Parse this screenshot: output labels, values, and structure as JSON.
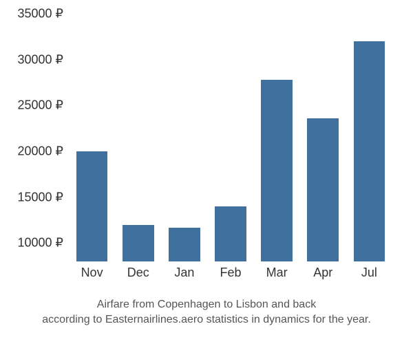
{
  "chart": {
    "type": "bar",
    "categories": [
      "Nov",
      "Dec",
      "Jan",
      "Feb",
      "Mar",
      "Apr",
      "Jul"
    ],
    "values": [
      20000,
      12000,
      11700,
      14000,
      27800,
      23600,
      32000
    ],
    "bar_color": "#40709e",
    "y_ticks": [
      10000,
      15000,
      20000,
      25000,
      30000,
      35000
    ],
    "y_tick_labels": [
      "10000 ₽",
      "15000 ₽",
      "20000 ₽",
      "25000 ₽",
      "30000 ₽",
      "35000 ₽"
    ],
    "y_baseline": 8000,
    "y_max": 35000,
    "background_color": "#ffffff",
    "text_color": "#333333",
    "caption_color": "#555555",
    "axis_fontsize": 18,
    "caption_fontsize": 16,
    "caption_line1": "Airfare from Copenhagen to Lisbon and back",
    "caption_line2": "according to Easternairlines.aero statistics in dynamics for the year."
  }
}
